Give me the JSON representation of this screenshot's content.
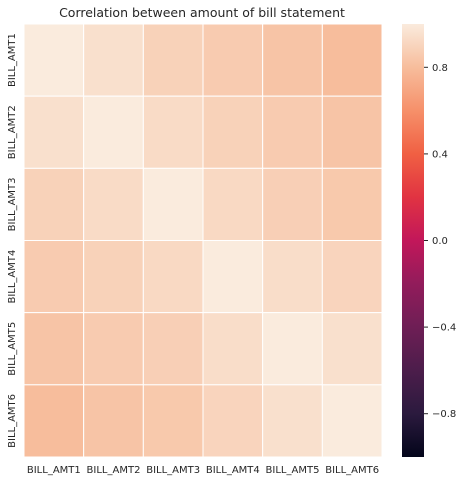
{
  "chart_data": {
    "type": "heatmap",
    "title": "Correlation between amount of bill statement",
    "x_categories": [
      "BILL_AMT1",
      "BILL_AMT2",
      "BILL_AMT3",
      "BILL_AMT4",
      "BILL_AMT5",
      "BILL_AMT6"
    ],
    "y_categories": [
      "BILL_AMT1",
      "BILL_AMT2",
      "BILL_AMT3",
      "BILL_AMT4",
      "BILL_AMT5",
      "BILL_AMT6"
    ],
    "values": [
      [
        1.0,
        0.95,
        0.89,
        0.86,
        0.83,
        0.8
      ],
      [
        0.95,
        1.0,
        0.93,
        0.89,
        0.86,
        0.83
      ],
      [
        0.89,
        0.93,
        1.0,
        0.92,
        0.88,
        0.85
      ],
      [
        0.86,
        0.89,
        0.92,
        1.0,
        0.94,
        0.9
      ],
      [
        0.83,
        0.86,
        0.88,
        0.94,
        1.0,
        0.95
      ],
      [
        0.8,
        0.83,
        0.85,
        0.9,
        0.95,
        1.0
      ]
    ],
    "colorbar": {
      "min": -1.0,
      "max": 1.0,
      "ticks": [
        -0.8,
        -0.4,
        0.0,
        0.4,
        0.8
      ],
      "tick_labels": [
        "−0.8",
        "−0.4",
        "0.0",
        "0.4",
        "0.8"
      ],
      "colormap": "rocket"
    },
    "grid_lines": true,
    "grid_color": "#ffffff"
  }
}
